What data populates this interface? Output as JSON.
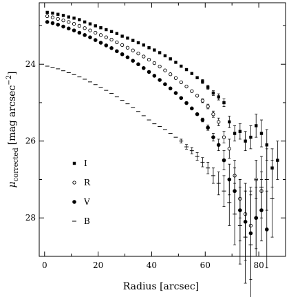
{
  "chart_data": {
    "type": "scatter",
    "xlabel": "Radius [arcsec]",
    "ylabel": "μ_corrected [mag arcsec⁻²]",
    "ylabel_parts": {
      "symbol": "μ",
      "subscript": "corrected",
      "unit_prefix": "[mag arcsec",
      "unit_exp": "−2",
      "unit_suffix": "]"
    },
    "xlim": [
      -2,
      90
    ],
    "ylim": [
      29.0,
      22.4
    ],
    "y_inverted": true,
    "x_ticks": [
      "0",
      "20",
      "40",
      "60",
      "80"
    ],
    "x_tick_values": [
      0,
      20,
      40,
      60,
      80
    ],
    "y_ticks": [
      "24",
      "26",
      "28"
    ],
    "y_tick_values": [
      24,
      26,
      28
    ],
    "legend_position": "left-middle",
    "grid": false,
    "series": [
      {
        "name": "I",
        "marker": "filled-square",
        "color": "#000000",
        "x": [
          1,
          3,
          5,
          7,
          9,
          11,
          13,
          15,
          17,
          19,
          21,
          23,
          25,
          27,
          29,
          31,
          33,
          35,
          37,
          39,
          41,
          43,
          45,
          47,
          49,
          51,
          53,
          55,
          57,
          59,
          61,
          63,
          65,
          67,
          69,
          71,
          73,
          75,
          77,
          79,
          81,
          83,
          85,
          87
        ],
        "y": [
          22.65,
          22.67,
          22.7,
          22.73,
          22.77,
          22.8,
          22.84,
          22.9,
          22.95,
          23.0,
          23.05,
          23.1,
          23.15,
          23.2,
          23.27,
          23.32,
          23.38,
          23.44,
          23.5,
          23.57,
          23.63,
          23.7,
          23.78,
          23.86,
          23.95,
          24.05,
          24.14,
          24.24,
          24.35,
          24.45,
          24.6,
          24.75,
          24.85,
          25.0,
          25.5,
          25.8,
          25.75,
          26.0,
          25.9,
          25.6,
          25.8,
          26.1,
          26.7,
          26.5
        ],
        "err": [
          0,
          0,
          0,
          0,
          0,
          0,
          0,
          0,
          0,
          0,
          0,
          0,
          0,
          0,
          0,
          0,
          0,
          0,
          0,
          0,
          0,
          0,
          0,
          0,
          0,
          0,
          0,
          0,
          0,
          0.05,
          0.05,
          0.06,
          0.08,
          0.1,
          0.15,
          0.2,
          0.2,
          0.25,
          0.3,
          0.3,
          0.35,
          0.4,
          0.5,
          0.5
        ]
      },
      {
        "name": "R",
        "marker": "open-circle",
        "color": "#000000",
        "x": [
          1,
          3,
          5,
          7,
          9,
          11,
          13,
          15,
          17,
          19,
          21,
          23,
          25,
          27,
          29,
          31,
          33,
          35,
          37,
          39,
          41,
          43,
          45,
          47,
          49,
          51,
          53,
          55,
          57,
          59,
          61,
          63,
          65,
          67,
          69,
          71,
          73,
          75,
          77,
          79,
          81
        ],
        "y": [
          22.75,
          22.78,
          22.82,
          22.86,
          22.9,
          22.95,
          23.0,
          23.06,
          23.12,
          23.18,
          23.24,
          23.3,
          23.36,
          23.43,
          23.5,
          23.57,
          23.64,
          23.72,
          23.8,
          23.88,
          23.97,
          24.06,
          24.16,
          24.26,
          24.36,
          24.47,
          24.58,
          24.7,
          24.82,
          24.95,
          25.1,
          25.3,
          25.5,
          25.9,
          26.2,
          26.9,
          27.5,
          27.9,
          28.2,
          27.0,
          27.3
        ],
        "err": [
          0,
          0,
          0,
          0,
          0,
          0,
          0,
          0,
          0,
          0,
          0,
          0,
          0,
          0,
          0,
          0,
          0,
          0,
          0,
          0,
          0,
          0,
          0,
          0,
          0,
          0,
          0,
          0,
          0,
          0.05,
          0.06,
          0.08,
          0.1,
          0.15,
          0.25,
          0.4,
          0.5,
          0.6,
          0.8,
          0.5,
          0.5
        ]
      },
      {
        "name": "V",
        "marker": "filled-circle",
        "color": "#000000",
        "x": [
          1,
          3,
          5,
          7,
          9,
          11,
          13,
          15,
          17,
          19,
          21,
          23,
          25,
          27,
          29,
          31,
          33,
          35,
          37,
          39,
          41,
          43,
          45,
          47,
          49,
          51,
          53,
          55,
          57,
          59,
          61,
          63,
          65,
          67,
          69,
          71,
          73,
          75,
          77,
          79,
          81,
          83
        ],
        "y": [
          22.9,
          22.93,
          22.97,
          23.02,
          23.07,
          23.12,
          23.18,
          23.24,
          23.3,
          23.37,
          23.44,
          23.51,
          23.58,
          23.66,
          23.74,
          23.82,
          23.91,
          24.0,
          24.1,
          24.2,
          24.3,
          24.41,
          24.52,
          24.63,
          24.75,
          24.88,
          25.01,
          25.15,
          25.3,
          25.45,
          25.65,
          25.9,
          26.1,
          26.5,
          27.0,
          27.3,
          27.8,
          28.1,
          28.4,
          28.0,
          27.8,
          28.3
        ],
        "err": [
          0,
          0,
          0,
          0,
          0,
          0,
          0,
          0,
          0,
          0,
          0,
          0,
          0,
          0,
          0,
          0,
          0,
          0,
          0,
          0,
          0,
          0,
          0,
          0,
          0,
          0,
          0,
          0,
          0,
          0.05,
          0.07,
          0.1,
          0.15,
          0.25,
          0.4,
          0.6,
          0.8,
          1.0,
          1.2,
          0.8,
          0.8,
          1.0
        ]
      },
      {
        "name": "B",
        "marker": "dash",
        "color": "#000000",
        "x": [
          1,
          3,
          5,
          7,
          9,
          11,
          13,
          15,
          17,
          19,
          21,
          23,
          25,
          27,
          29,
          31,
          33,
          35,
          37,
          39,
          41,
          43,
          45,
          47,
          49,
          51,
          53,
          55,
          57,
          59,
          61,
          63,
          65,
          67,
          69,
          71,
          73,
          75,
          77,
          79,
          81,
          83,
          85
        ],
        "y": [
          24.05,
          24.08,
          24.12,
          24.17,
          24.22,
          24.27,
          24.33,
          24.39,
          24.46,
          24.53,
          24.6,
          24.68,
          24.76,
          24.85,
          24.94,
          25.03,
          25.13,
          25.23,
          25.34,
          25.45,
          25.55,
          25.62,
          25.7,
          25.8,
          25.9,
          26.0,
          26.15,
          26.25,
          26.4,
          26.55,
          26.7,
          26.9,
          27.1,
          27.3,
          27.6,
          27.9,
          28.2,
          28.5,
          28.7,
          28.0,
          27.2,
          27.0,
          27.5
        ],
        "err": [
          0,
          0,
          0,
          0,
          0,
          0,
          0,
          0,
          0,
          0,
          0,
          0,
          0,
          0,
          0,
          0,
          0,
          0,
          0,
          0,
          0,
          0,
          0,
          0,
          0,
          0.05,
          0.06,
          0.08,
          0.1,
          0.12,
          0.15,
          0.2,
          0.3,
          0.4,
          0.6,
          0.8,
          1.0,
          1.2,
          1.4,
          1.0,
          0.8,
          0.8,
          1.0
        ]
      }
    ]
  }
}
